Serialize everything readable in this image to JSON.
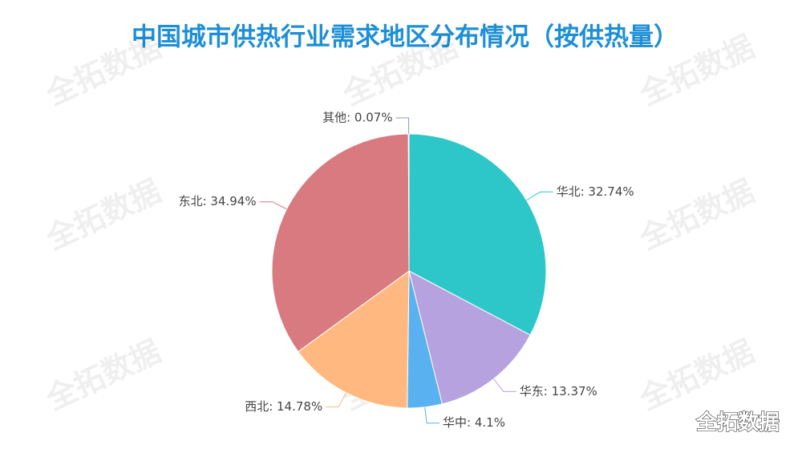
{
  "chart_data": {
    "type": "pie",
    "title": "中国城市供热行业需求地区分布情况（按供热量）",
    "values": [
      32.74,
      13.37,
      4.1,
      14.78,
      34.94,
      0.07
    ],
    "value_labels": [
      "华北: 32.74%",
      "华东: 13.37%",
      "华中: 4.1%",
      "西北: 14.78%",
      "东北: 34.94%",
      "其他: 0.07%"
    ],
    "colors": [
      "#2ec7c9",
      "#b6a2de",
      "#5ab1ef",
      "#ffb980",
      "#d87a80",
      "#8d98b3"
    ]
  },
  "watermark": "全拓数据",
  "brand": "全拓数据"
}
